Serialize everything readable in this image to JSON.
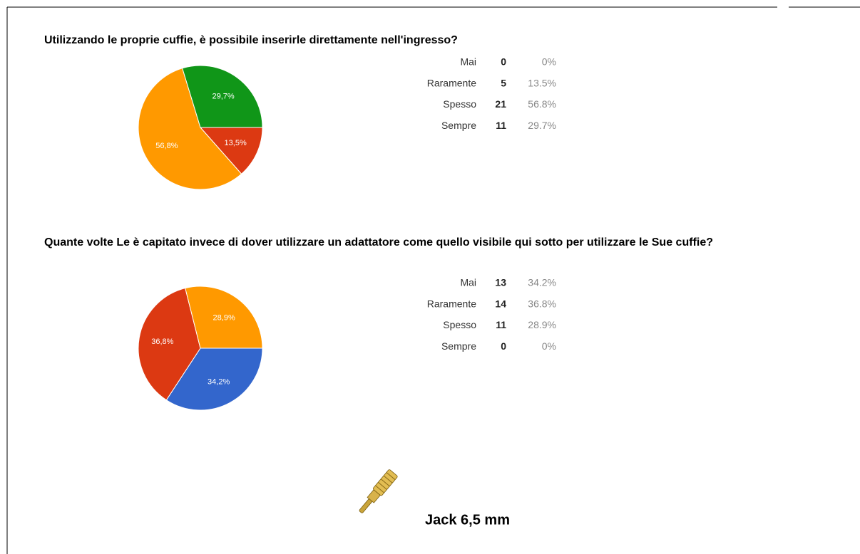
{
  "chart_data": [
    {
      "type": "pie",
      "title": "Utilizzando le proprie cuffie, è possibile inserirle direttamente nell'ingresso?",
      "categories": [
        "Mai",
        "Raramente",
        "Spesso",
        "Sempre"
      ],
      "counts": [
        0,
        5,
        21,
        11
      ],
      "values": [
        0,
        13.5,
        56.8,
        29.7
      ],
      "value_labels": [
        "0%",
        "13.5%",
        "56.8%",
        "29.7%"
      ],
      "slice_labels": [
        null,
        "13,5%",
        "56,8%",
        "29,7%"
      ],
      "colors": [
        "#3366cc",
        "#dc3912",
        "#ff9900",
        "#109618"
      ]
    },
    {
      "type": "pie",
      "title": "Quante volte Le è capitato invece di dover utilizzare un adattatore come quello visibile qui sotto per utilizzare le Sue cuffie?",
      "categories": [
        "Mai",
        "Raramente",
        "Spesso",
        "Sempre"
      ],
      "counts": [
        13,
        14,
        11,
        0
      ],
      "values": [
        34.2,
        36.8,
        28.9,
        0
      ],
      "value_labels": [
        "34.2%",
        "36.8%",
        "28.9%",
        "0%"
      ],
      "slice_labels": [
        "34,2%",
        "36,8%",
        "28,9%",
        null
      ],
      "colors": [
        "#3366cc",
        "#dc3912",
        "#ff9900",
        "#109618"
      ]
    }
  ],
  "image_caption": "Jack 6,5 mm"
}
